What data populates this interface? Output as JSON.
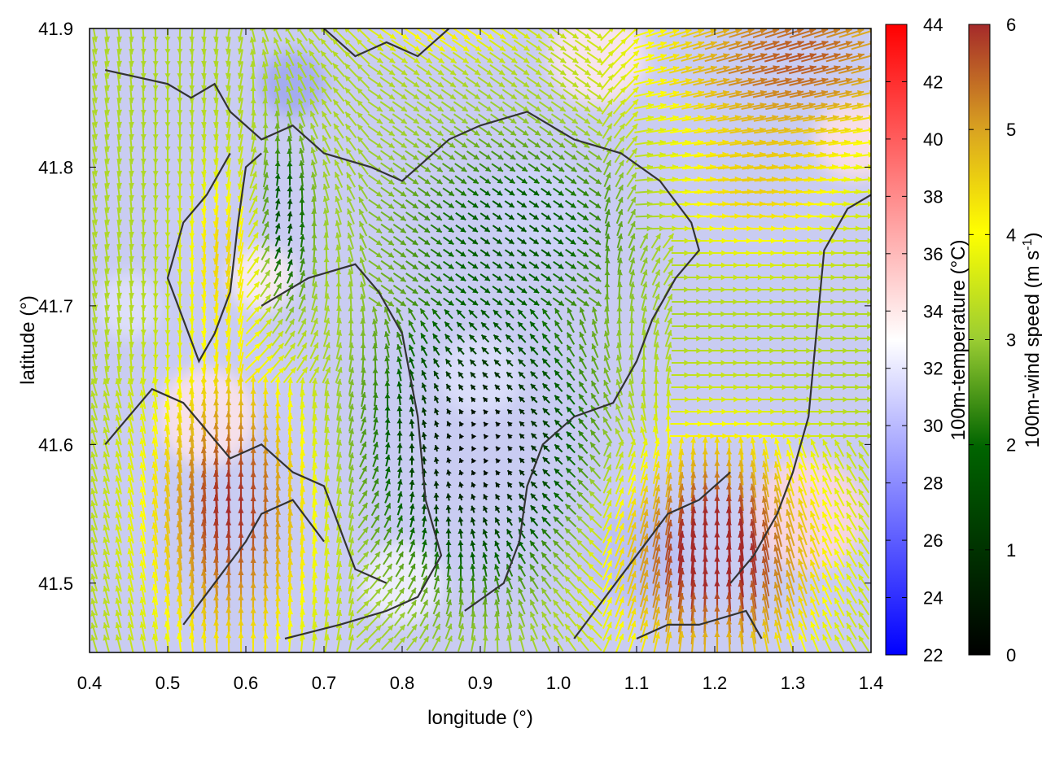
{
  "chart_data": {
    "type": "heatmap",
    "title": "",
    "xlabel": "longitude (°)",
    "ylabel": "latitude (°)",
    "xlim": [
      0.4,
      1.4
    ],
    "ylim": [
      41.45,
      41.9
    ],
    "x_ticks": [
      0.4,
      0.5,
      0.6,
      0.7,
      0.8,
      0.9,
      1.0,
      1.1,
      1.2,
      1.3,
      1.4
    ],
    "y_ticks": [
      41.5,
      41.6,
      41.7,
      41.8,
      41.9
    ],
    "x_tick_labels": [
      "0.4",
      "0.5",
      "0.6",
      "0.7",
      "0.8",
      "0.9",
      "1.0",
      "1.1",
      "1.2",
      "1.3",
      "1.4"
    ],
    "y_tick_labels": [
      "41.5",
      "41.6",
      "41.7",
      "41.8",
      "41.9"
    ],
    "temperature_colorbar": {
      "label": "100m-temperature (°C)",
      "range": [
        22,
        44
      ],
      "ticks": [
        22,
        24,
        26,
        28,
        30,
        32,
        34,
        36,
        38,
        40,
        42,
        44
      ],
      "tick_labels": [
        "22",
        "24",
        "26",
        "28",
        "30",
        "32",
        "34",
        "36",
        "38",
        "40",
        "42",
        "44"
      ],
      "colors": [
        "#0000ff",
        "#ffffff",
        "#ff0000"
      ]
    },
    "wind_colorbar": {
      "label_main": "100m-wind speed (m s",
      "label_sup": "-1",
      "label_end": ")",
      "range": [
        0,
        6
      ],
      "ticks": [
        0,
        1,
        2,
        3,
        4,
        5,
        6
      ],
      "tick_labels": [
        "0",
        "1",
        "2",
        "3",
        "4",
        "5",
        "6"
      ],
      "colors": [
        "#000000",
        "#006400",
        "#9acd32",
        "#ffff00",
        "#daa520",
        "#a52a2a"
      ]
    },
    "temperature_range_shown_c": [
      27,
      35
    ],
    "wind_speed_range_shown_ms": [
      0,
      6
    ],
    "contour_lines": "terrain contours (dark gray)",
    "grid": false,
    "legend": "colorbars at right"
  }
}
